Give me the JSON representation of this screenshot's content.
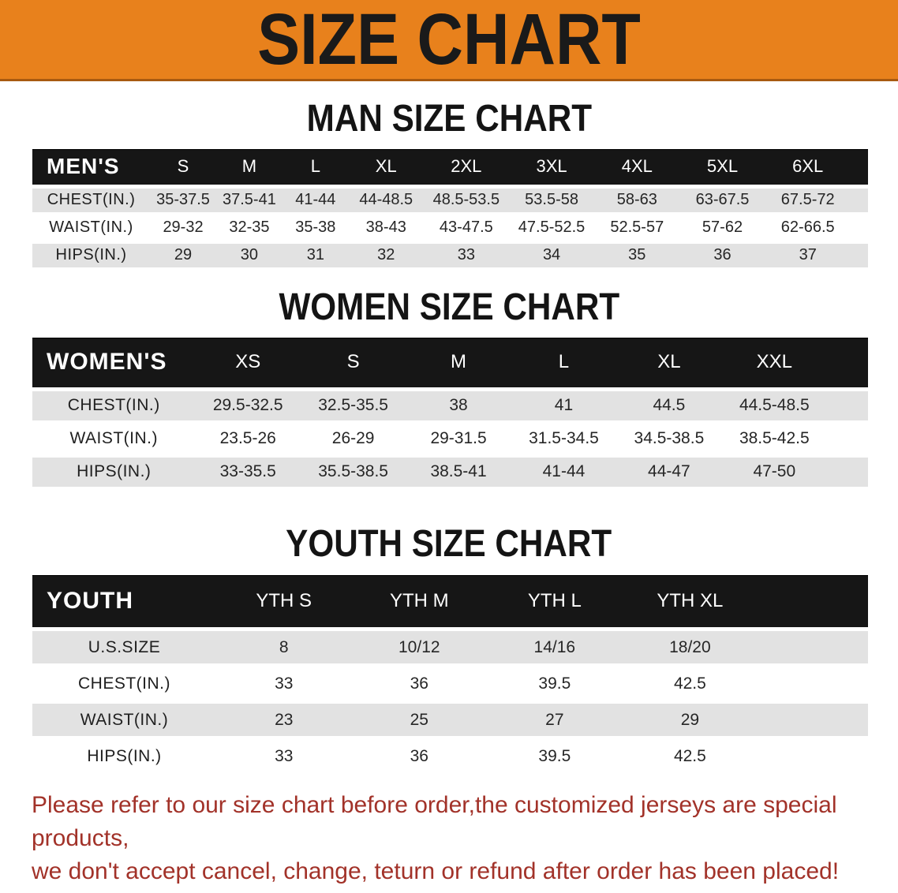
{
  "banner": {
    "title": "SIZE CHART"
  },
  "colors": {
    "banner_bg": "#e8811c",
    "banner_edge": "#a85a10",
    "header_bg": "#161616",
    "row_alt_bg": "#e2e2e2",
    "note_color": "#a23229"
  },
  "sections": [
    {
      "id": "men",
      "title": "MAN SIZE CHART",
      "corner_label": "MEN'S",
      "columns": [
        "S",
        "M",
        "L",
        "XL",
        "2XL",
        "3XL",
        "4XL",
        "5XL",
        "6XL"
      ],
      "rows": [
        {
          "label": "CHEST(IN.)",
          "values": [
            "35-37.5",
            "37.5-41",
            "41-44",
            "44-48.5",
            "48.5-53.5",
            "53.5-58",
            "58-63",
            "63-67.5",
            "67.5-72"
          ]
        },
        {
          "label": "WAIST(IN.)",
          "values": [
            "29-32",
            "32-35",
            "35-38",
            "38-43",
            "43-47.5",
            "47.5-52.5",
            "52.5-57",
            "57-62",
            "62-66.5"
          ]
        },
        {
          "label": "HIPS(IN.)",
          "values": [
            "29",
            "30",
            "31",
            "32",
            "33",
            "34",
            "35",
            "36",
            "37"
          ]
        }
      ]
    },
    {
      "id": "women",
      "title": "WOMEN SIZE CHART",
      "corner_label": "WOMEN'S",
      "columns": [
        "XS",
        "S",
        "M",
        "L",
        "XL",
        "XXL"
      ],
      "rows": [
        {
          "label": "CHEST(IN.)",
          "values": [
            "29.5-32.5",
            "32.5-35.5",
            "38",
            "41",
            "44.5",
            "44.5-48.5"
          ]
        },
        {
          "label": "WAIST(IN.)",
          "values": [
            "23.5-26",
            "26-29",
            "29-31.5",
            "31.5-34.5",
            "34.5-38.5",
            "38.5-42.5"
          ]
        },
        {
          "label": "HIPS(IN.)",
          "values": [
            "33-35.5",
            "35.5-38.5",
            "38.5-41",
            "41-44",
            "44-47",
            "47-50"
          ]
        }
      ]
    },
    {
      "id": "youth",
      "title": "YOUTH SIZE CHART",
      "corner_label": "YOUTH",
      "columns": [
        "YTH S",
        "YTH M",
        "YTH L",
        "YTH XL"
      ],
      "rows": [
        {
          "label": "U.S.SIZE",
          "values": [
            "8",
            "10/12",
            "14/16",
            "18/20"
          ]
        },
        {
          "label": "CHEST(IN.)",
          "values": [
            "33",
            "36",
            "39.5",
            "42.5"
          ]
        },
        {
          "label": "WAIST(IN.)",
          "values": [
            "23",
            "25",
            "27",
            "29"
          ]
        },
        {
          "label": "HIPS(IN.)",
          "values": [
            "33",
            "36",
            "39.5",
            "42.5"
          ]
        }
      ]
    }
  ],
  "note": {
    "lines": [
      "Please refer to our size chart before order,the customized jerseys are special products,",
      "we don't accept cancel, change, teturn or refund after order has been placed!"
    ]
  }
}
